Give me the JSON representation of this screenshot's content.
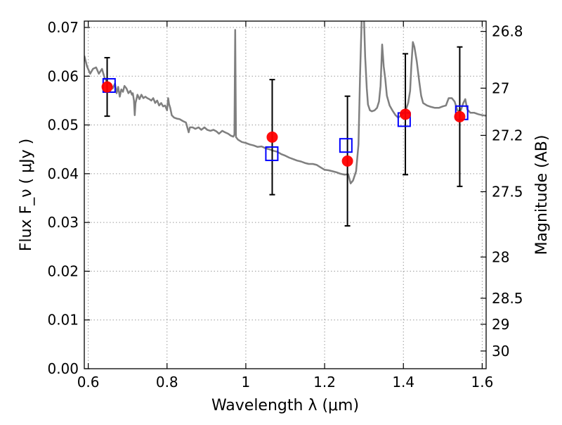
{
  "chart_data": {
    "type": "scatter",
    "title": "",
    "xlabel": "Wavelength  λ (μm)",
    "ylabel": "Flux  F_ν  ( μJy )",
    "ylabel_right": "Magnitude (AB)",
    "xlim": [
      0.59,
      1.61
    ],
    "ylim": [
      0.0,
      0.0713
    ],
    "grid": true,
    "x_ticks": [
      0.6,
      0.8,
      1.0,
      1.2,
      1.4,
      1.6
    ],
    "x_tick_labels": [
      "0.6",
      "0.8",
      "1",
      "1.2",
      "1.4",
      "1.6"
    ],
    "y_ticks": [
      0.0,
      0.01,
      0.02,
      0.03,
      0.04,
      0.05,
      0.06,
      0.07
    ],
    "y_tick_labels": [
      "0.00",
      "0.01",
      "0.02",
      "0.03",
      "0.04",
      "0.05",
      "0.06",
      "0.07"
    ],
    "right_ticks": [
      {
        "mag": 26.8,
        "label": "26.8"
      },
      {
        "mag": 27.0,
        "label": "27"
      },
      {
        "mag": 27.2,
        "label": "27.2"
      },
      {
        "mag": 27.5,
        "label": "27.5"
      },
      {
        "mag": 28.0,
        "label": "28"
      },
      {
        "mag": 28.5,
        "label": "28.5"
      },
      {
        "mag": 29.0,
        "label": "29"
      },
      {
        "mag": 30.0,
        "label": "30"
      }
    ],
    "observed": [
      {
        "x": 0.648,
        "y": 0.0578,
        "err": 0.006
      },
      {
        "x": 1.067,
        "y": 0.0475,
        "err": 0.0118
      },
      {
        "x": 1.258,
        "y": 0.0426,
        "err": 0.0133
      },
      {
        "x": 1.405,
        "y": 0.0522,
        "err": 0.0124
      },
      {
        "x": 1.543,
        "y": 0.0517,
        "err": 0.0143
      }
    ],
    "model_photometry": [
      {
        "x": 0.653,
        "y": 0.0581
      },
      {
        "x": 1.066,
        "y": 0.0441
      },
      {
        "x": 1.254,
        "y": 0.0458
      },
      {
        "x": 1.402,
        "y": 0.0511
      },
      {
        "x": 1.548,
        "y": 0.0525
      }
    ],
    "spectrum": [
      [
        0.59,
        0.0642
      ],
      [
        0.597,
        0.062
      ],
      [
        0.605,
        0.0605
      ],
      [
        0.612,
        0.0615
      ],
      [
        0.62,
        0.0618
      ],
      [
        0.627,
        0.0605
      ],
      [
        0.635,
        0.0615
      ],
      [
        0.642,
        0.0595
      ],
      [
        0.648,
        0.0588
      ],
      [
        0.655,
        0.0585
      ],
      [
        0.662,
        0.0575
      ],
      [
        0.668,
        0.0585
      ],
      [
        0.672,
        0.0565
      ],
      [
        0.676,
        0.0578
      ],
      [
        0.68,
        0.0558
      ],
      [
        0.684,
        0.0573
      ],
      [
        0.688,
        0.0568
      ],
      [
        0.692,
        0.058
      ],
      [
        0.697,
        0.0575
      ],
      [
        0.702,
        0.0565
      ],
      [
        0.707,
        0.057
      ],
      [
        0.711,
        0.0562
      ],
      [
        0.713,
        0.0565
      ],
      [
        0.716,
        0.055
      ],
      [
        0.718,
        0.052
      ],
      [
        0.72,
        0.0545
      ],
      [
        0.725,
        0.0562
      ],
      [
        0.73,
        0.0553
      ],
      [
        0.735,
        0.0562
      ],
      [
        0.74,
        0.0555
      ],
      [
        0.745,
        0.0558
      ],
      [
        0.75,
        0.0555
      ],
      [
        0.755,
        0.0553
      ],
      [
        0.76,
        0.055
      ],
      [
        0.765,
        0.0555
      ],
      [
        0.77,
        0.0545
      ],
      [
        0.775,
        0.055
      ],
      [
        0.78,
        0.054
      ],
      [
        0.785,
        0.0545
      ],
      [
        0.79,
        0.0538
      ],
      [
        0.795,
        0.054
      ],
      [
        0.8,
        0.053
      ],
      [
        0.803,
        0.0555
      ],
      [
        0.805,
        0.0543
      ],
      [
        0.808,
        0.0535
      ],
      [
        0.812,
        0.052
      ],
      [
        0.818,
        0.0515
      ],
      [
        0.825,
        0.0513
      ],
      [
        0.832,
        0.0512
      ],
      [
        0.84,
        0.0508
      ],
      [
        0.848,
        0.0505
      ],
      [
        0.855,
        0.0485
      ],
      [
        0.858,
        0.0495
      ],
      [
        0.865,
        0.0495
      ],
      [
        0.872,
        0.0492
      ],
      [
        0.88,
        0.0495
      ],
      [
        0.887,
        0.049
      ],
      [
        0.895,
        0.0495
      ],
      [
        0.902,
        0.049
      ],
      [
        0.91,
        0.0488
      ],
      [
        0.918,
        0.049
      ],
      [
        0.925,
        0.0487
      ],
      [
        0.932,
        0.0482
      ],
      [
        0.94,
        0.0488
      ],
      [
        0.947,
        0.0485
      ],
      [
        0.955,
        0.0482
      ],
      [
        0.962,
        0.0478
      ],
      [
        0.968,
        0.0476
      ],
      [
        0.971,
        0.048
      ],
      [
        0.973,
        0.0695
      ],
      [
        0.975,
        0.0475
      ],
      [
        0.98,
        0.047
      ],
      [
        0.99,
        0.0465
      ],
      [
        1.0,
        0.0463
      ],
      [
        1.01,
        0.046
      ],
      [
        1.02,
        0.0458
      ],
      [
        1.03,
        0.0455
      ],
      [
        1.04,
        0.0456
      ],
      [
        1.05,
        0.0452
      ],
      [
        1.06,
        0.045
      ],
      [
        1.07,
        0.0447
      ],
      [
        1.08,
        0.0445
      ],
      [
        1.09,
        0.044
      ],
      [
        1.1,
        0.0437
      ],
      [
        1.11,
        0.0433
      ],
      [
        1.12,
        0.043
      ],
      [
        1.13,
        0.0427
      ],
      [
        1.14,
        0.0425
      ],
      [
        1.15,
        0.0422
      ],
      [
        1.16,
        0.042
      ],
      [
        1.17,
        0.042
      ],
      [
        1.18,
        0.0418
      ],
      [
        1.19,
        0.0413
      ],
      [
        1.2,
        0.0408
      ],
      [
        1.21,
        0.0407
      ],
      [
        1.22,
        0.0405
      ],
      [
        1.23,
        0.0403
      ],
      [
        1.24,
        0.04
      ],
      [
        1.25,
        0.0398
      ],
      [
        1.26,
        0.0399
      ],
      [
        1.266,
        0.038
      ],
      [
        1.272,
        0.0386
      ],
      [
        1.28,
        0.0405
      ],
      [
        1.286,
        0.046
      ],
      [
        1.29,
        0.06
      ],
      [
        1.294,
        0.0715
      ],
      [
        1.3,
        0.0715
      ],
      [
        1.303,
        0.064
      ],
      [
        1.307,
        0.0575
      ],
      [
        1.31,
        0.0542
      ],
      [
        1.315,
        0.053
      ],
      [
        1.32,
        0.0528
      ],
      [
        1.327,
        0.053
      ],
      [
        1.333,
        0.0535
      ],
      [
        1.338,
        0.0548
      ],
      [
        1.342,
        0.058
      ],
      [
        1.346,
        0.0665
      ],
      [
        1.35,
        0.062
      ],
      [
        1.354,
        0.0595
      ],
      [
        1.358,
        0.056
      ],
      [
        1.365,
        0.054
      ],
      [
        1.372,
        0.053
      ],
      [
        1.38,
        0.052
      ],
      [
        1.387,
        0.0515
      ],
      [
        1.395,
        0.052
      ],
      [
        1.405,
        0.0528
      ],
      [
        1.412,
        0.0545
      ],
      [
        1.417,
        0.057
      ],
      [
        1.42,
        0.062
      ],
      [
        1.424,
        0.067
      ],
      [
        1.428,
        0.066
      ],
      [
        1.434,
        0.063
      ],
      [
        1.44,
        0.059
      ],
      [
        1.445,
        0.056
      ],
      [
        1.45,
        0.0545
      ],
      [
        1.46,
        0.054
      ],
      [
        1.47,
        0.0537
      ],
      [
        1.48,
        0.0535
      ],
      [
        1.49,
        0.0535
      ],
      [
        1.5,
        0.0538
      ],
      [
        1.508,
        0.054
      ],
      [
        1.515,
        0.0555
      ],
      [
        1.523,
        0.0555
      ],
      [
        1.53,
        0.0548
      ],
      [
        1.537,
        0.053
      ],
      [
        1.545,
        0.0528
      ],
      [
        1.552,
        0.0545
      ],
      [
        1.557,
        0.0553
      ],
      [
        1.562,
        0.0532
      ],
      [
        1.57,
        0.0525
      ],
      [
        1.58,
        0.0525
      ],
      [
        1.59,
        0.0522
      ],
      [
        1.6,
        0.052
      ],
      [
        1.61,
        0.0519
      ]
    ],
    "colors": {
      "spectrum": "#7f7f7f",
      "observed": "#ff0000",
      "model_photometry": "#0000ff",
      "errorbar": "#000000",
      "grid": "#9a9a9a"
    }
  }
}
